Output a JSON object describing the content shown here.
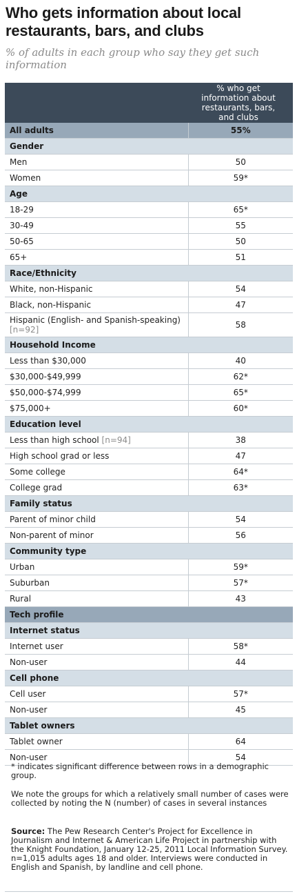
{
  "header": {
    "title": "Who gets information about local restaurants, bars, and clubs",
    "subtitle": "% of adults in each group who say they get such information"
  },
  "table": {
    "column_header": "% who get information about restaurants, bars, and clubs",
    "all_adults": {
      "label": "All adults",
      "value": "55%"
    },
    "sections": [
      {
        "label": "Gender",
        "rows": [
          {
            "label": "Men",
            "value": "50"
          },
          {
            "label": "Women",
            "value": "59*"
          }
        ]
      },
      {
        "label": "Age",
        "rows": [
          {
            "label": "18-29",
            "value": "65*"
          },
          {
            "label": "30-49",
            "value": "55"
          },
          {
            "label": "50-65",
            "value": "50"
          },
          {
            "label": "65+",
            "value": "51"
          }
        ]
      },
      {
        "label": "Race/Ethnicity",
        "rows": [
          {
            "label": "White, non-Hispanic",
            "value": "54"
          },
          {
            "label": "Black, non-Hispanic",
            "value": "47"
          },
          {
            "label": "Hispanic (English- and Spanish-speaking)",
            "note": "[n=92]",
            "value": "58"
          }
        ]
      },
      {
        "label": "Household Income",
        "rows": [
          {
            "label": "Less than $30,000",
            "value": "40"
          },
          {
            "label": "$30,000-$49,999",
            "value": "62*"
          },
          {
            "label": "$50,000-$74,999",
            "value": "65*"
          },
          {
            "label": "$75,000+",
            "value": "60*"
          }
        ]
      },
      {
        "label": "Education level",
        "rows": [
          {
            "label": "Less than high school",
            "note": "[n=94]",
            "value": "38"
          },
          {
            "label": "High school grad or less",
            "value": "47"
          },
          {
            "label": "Some college",
            "value": "64*"
          },
          {
            "label": "College grad",
            "value": "63*"
          }
        ]
      },
      {
        "label": "Family status",
        "rows": [
          {
            "label": "Parent of minor child",
            "value": "54"
          },
          {
            "label": "Non-parent of minor",
            "value": "56"
          }
        ]
      },
      {
        "label": "Community type",
        "rows": [
          {
            "label": "Urban",
            "value": "59*"
          },
          {
            "label": "Suburban",
            "value": "57*"
          },
          {
            "label": "Rural",
            "value": "43"
          }
        ]
      }
    ],
    "tech_profile_label": "Tech profile",
    "tech_sections": [
      {
        "label": "Internet status",
        "rows": [
          {
            "label": "Internet user",
            "value": "58*"
          },
          {
            "label": "Non-user",
            "value": "44"
          }
        ]
      },
      {
        "label": "Cell phone",
        "rows": [
          {
            "label": "Cell user",
            "value": "57*"
          },
          {
            "label": "Non-user",
            "value": "45"
          }
        ]
      },
      {
        "label": "Tablet owners",
        "rows": [
          {
            "label": "Tablet owner",
            "value": "64"
          },
          {
            "label": "Non-user",
            "value": "54"
          }
        ]
      }
    ]
  },
  "notes": {
    "significance": "* indicates significant difference between rows in a demographic group.",
    "small_n": "We note the groups for which a relatively small number of cases were collected by noting the N (number) of cases in several instances",
    "source_label": "Source:",
    "source_text": " The Pew Research Center's Project for Excellence in Journalism and Internet & American Life Project in partnership with the Knight Foundation, January 12-25, 2011 Local Information Survey. n=1,015 adults ages 18 and older. Interviews were conducted in English and Spanish, by landline and cell phone."
  },
  "chart_data": {
    "type": "table",
    "title": "Who gets information about local restaurants, bars, and clubs",
    "subtitle": "% of adults in each group who say they get such information",
    "column": "% who get information about restaurants, bars, and clubs",
    "rows": [
      {
        "group": "All adults",
        "label": "All adults",
        "value": 55
      },
      {
        "group": "Gender",
        "label": "Men",
        "value": 50
      },
      {
        "group": "Gender",
        "label": "Women",
        "value": 59,
        "significant": true
      },
      {
        "group": "Age",
        "label": "18-29",
        "value": 65,
        "significant": true
      },
      {
        "group": "Age",
        "label": "30-49",
        "value": 55
      },
      {
        "group": "Age",
        "label": "50-65",
        "value": 50
      },
      {
        "group": "Age",
        "label": "65+",
        "value": 51
      },
      {
        "group": "Race/Ethnicity",
        "label": "White, non-Hispanic",
        "value": 54
      },
      {
        "group": "Race/Ethnicity",
        "label": "Black, non-Hispanic",
        "value": 47
      },
      {
        "group": "Race/Ethnicity",
        "label": "Hispanic (English- and Spanish-speaking) [n=92]",
        "value": 58
      },
      {
        "group": "Household Income",
        "label": "Less than $30,000",
        "value": 40
      },
      {
        "group": "Household Income",
        "label": "$30,000-$49,999",
        "value": 62,
        "significant": true
      },
      {
        "group": "Household Income",
        "label": "$50,000-$74,999",
        "value": 65,
        "significant": true
      },
      {
        "group": "Household Income",
        "label": "$75,000+",
        "value": 60,
        "significant": true
      },
      {
        "group": "Education level",
        "label": "Less than high school [n=94]",
        "value": 38
      },
      {
        "group": "Education level",
        "label": "High school grad or less",
        "value": 47
      },
      {
        "group": "Education level",
        "label": "Some college",
        "value": 64,
        "significant": true
      },
      {
        "group": "Education level",
        "label": "College grad",
        "value": 63,
        "significant": true
      },
      {
        "group": "Family status",
        "label": "Parent of minor child",
        "value": 54
      },
      {
        "group": "Family status",
        "label": "Non-parent of minor",
        "value": 56
      },
      {
        "group": "Community type",
        "label": "Urban",
        "value": 59,
        "significant": true
      },
      {
        "group": "Community type",
        "label": "Suburban",
        "value": 57,
        "significant": true
      },
      {
        "group": "Community type",
        "label": "Rural",
        "value": 43
      },
      {
        "group": "Internet status",
        "label": "Internet user",
        "value": 58,
        "significant": true
      },
      {
        "group": "Internet status",
        "label": "Non-user",
        "value": 44
      },
      {
        "group": "Cell phone",
        "label": "Cell user",
        "value": 57,
        "significant": true
      },
      {
        "group": "Cell phone",
        "label": "Non-user",
        "value": 45
      },
      {
        "group": "Tablet owners",
        "label": "Tablet owner",
        "value": 64
      },
      {
        "group": "Tablet owners",
        "label": "Non-user",
        "value": 54
      }
    ]
  }
}
